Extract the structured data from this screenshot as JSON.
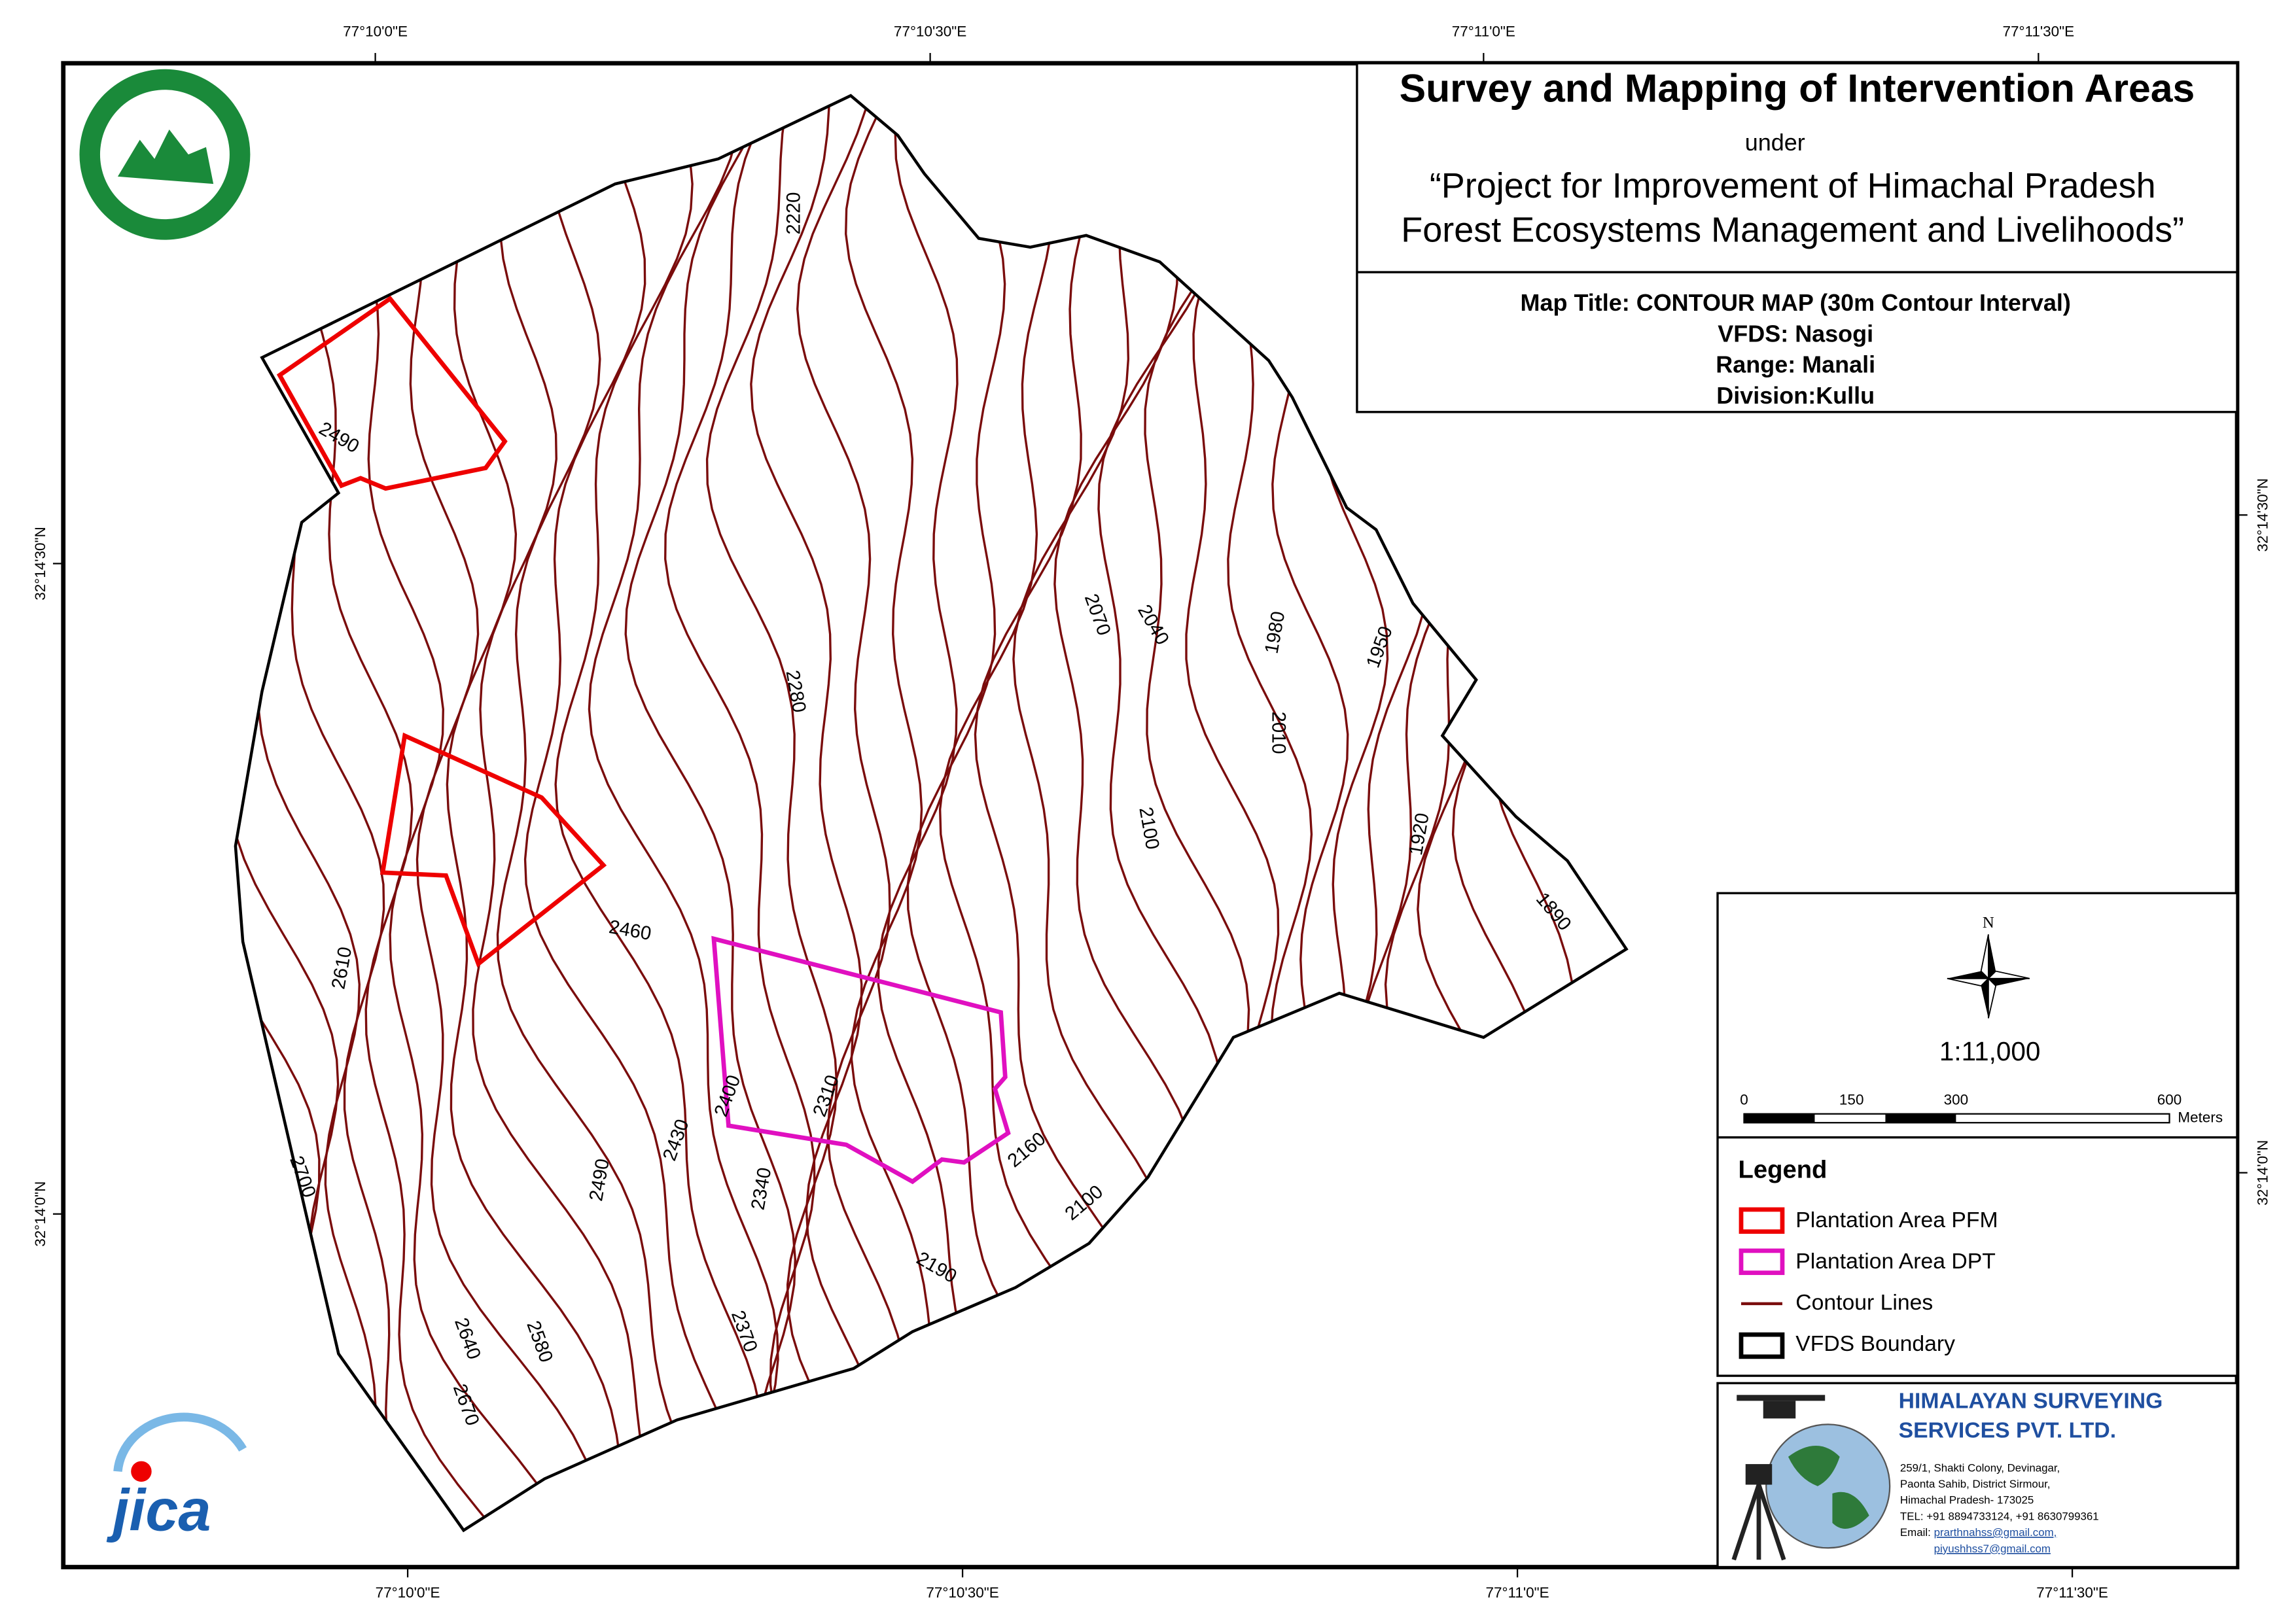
{
  "title_block": {
    "title": "Survey and Mapping of Intervention Areas",
    "under": "under",
    "project_line1": "“Project for Improvement of Himachal Pradesh",
    "project_line2": "Forest Ecosystems Management and Livelihoods”"
  },
  "map_info": {
    "map_title": "Map Title: CONTOUR MAP (30m Contour Interval)",
    "vfds": "VFDS: Nasogi",
    "range": "Range: Manali",
    "division": "Division:Kullu"
  },
  "graticule": {
    "top": [
      "77°10'0\"E",
      "77°10'30\"E",
      "77°11'0\"E",
      "77°11'30\"E"
    ],
    "bottom": [
      "77°10'0\"E",
      "77°10'30\"E",
      "77°11'0\"E",
      "77°11'30\"E"
    ],
    "left": [
      "32°14'30\"N",
      "32°14'0\"N"
    ],
    "right": [
      "32°14'30\"N",
      "32°14'0\"N"
    ]
  },
  "contour_labels": [
    "2220",
    "2490",
    "2070",
    "2040",
    "1980",
    "1950",
    "2280",
    "2010",
    "2100",
    "1920",
    "1890",
    "2460",
    "2610",
    "2400",
    "2310",
    "2430",
    "2160",
    "2700",
    "2490",
    "2340",
    "2100",
    "2190",
    "2370",
    "2580",
    "2640",
    "2670"
  ],
  "north": "N",
  "scale": "1:11,000",
  "scale_bar": {
    "ticks": [
      "0",
      "150",
      "300",
      "600"
    ],
    "unit": "Meters"
  },
  "legend": {
    "title": "Legend",
    "items": [
      "Plantation Area PFM",
      "Plantation Area DPT",
      "Contour Lines",
      "VFDS Boundary"
    ]
  },
  "company": {
    "name_line1": "HIMALAYAN SURVEYING",
    "name_line2": "SERVICES PVT. LTD.",
    "address": [
      "259/1, Shakti Colony, Devinagar,",
      "Paonta Sahib, District Sirmour,",
      "Himachal Pradesh- 173025",
      "TEL: +91 8894733124, +91 8630799361"
    ],
    "email_label": "Email:",
    "emails": [
      "prarthnahss@gmail.com,",
      "piyushhss7@gmail.com"
    ]
  },
  "jica_logo": "jica"
}
